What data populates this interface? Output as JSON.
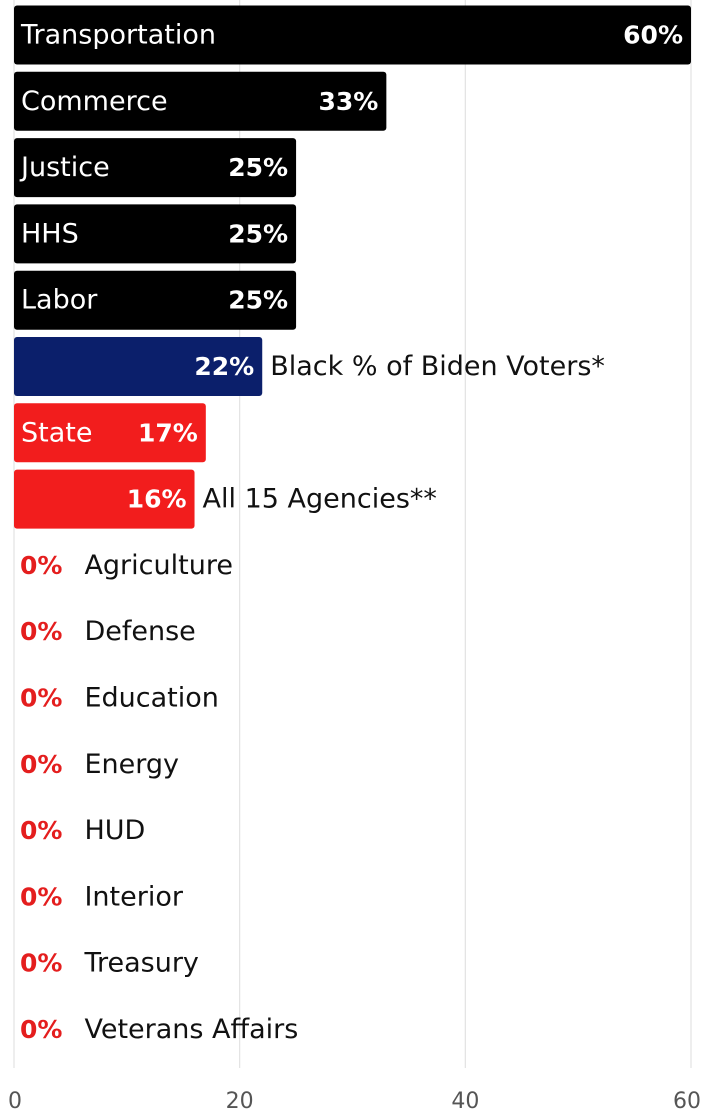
{
  "chart_data": {
    "type": "bar",
    "orientation": "horizontal",
    "title": "",
    "xlabel": "",
    "ylabel": "",
    "xlim": [
      0,
      60
    ],
    "x_ticks": [
      0,
      20,
      40,
      60
    ],
    "grid": "vertical",
    "legend": "none",
    "value_suffix": "%",
    "categories": [
      "Transportation",
      "Commerce",
      "Justice",
      "HHS",
      "Labor",
      "Black % of Biden Voters*",
      "State",
      "All 15 Agencies**",
      "Agriculture",
      "Defense",
      "Education",
      "Energy",
      "HUD",
      "Interior",
      "Treasury",
      "Veterans Affairs"
    ],
    "values": [
      60,
      33,
      25,
      25,
      25,
      22,
      17,
      16,
      0,
      0,
      0,
      0,
      0,
      0,
      0,
      0
    ],
    "bar_colors": [
      "#000000",
      "#000000",
      "#000000",
      "#000000",
      "#000000",
      "#0b1f6b",
      "#f21d1d",
      "#f21d1d",
      "#f21d1d",
      "#f21d1d",
      "#f21d1d",
      "#f21d1d",
      "#f21d1d",
      "#f21d1d",
      "#f21d1d",
      "#f21d1d"
    ],
    "colors": {
      "inside_label_text": "#ffffff",
      "outside_label_text": "#111111",
      "zero_value_text": "#e41e1e",
      "gridline": "#e2e2e2",
      "tick_text": "#555555"
    }
  }
}
